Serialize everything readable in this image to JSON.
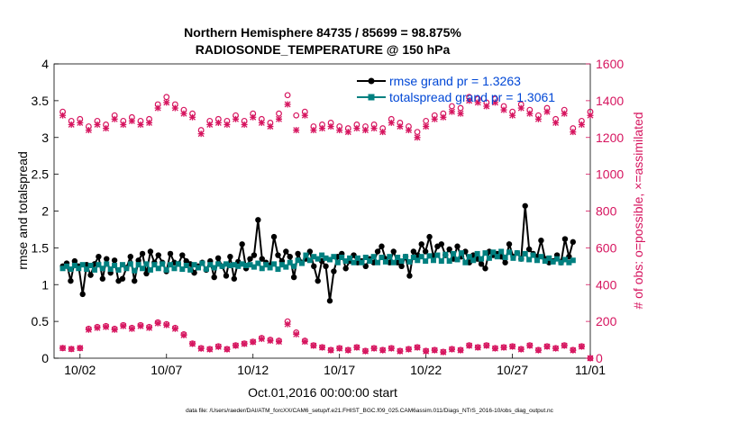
{
  "chart_data": {
    "type": "line",
    "title_line1": "Northern Hemisphere 84735 / 85699 = 98.875%",
    "title_line2": "RADIOSONDE_TEMPERATURE @ 150 hPa",
    "xlabel": "Oct.01,2016 00:00:00 start",
    "ylabel_left": "rmse and totalspread",
    "ylabel_right": "# of obs: o=possible, ×=assimilated",
    "footnote": "data file: /Users/raeder/DAI/ATM_forcXX/CAM6_setup/f.e21.FHIST_BGC.f09_025.CAM6assim.011/Diags_NTrS_2016-10/obs_diag_output.nc",
    "xlim": [
      0.5,
      31.5
    ],
    "ylim_left": [
      0,
      4
    ],
    "ylim_right": [
      0,
      1600
    ],
    "x_ticks": [
      {
        "x": 2,
        "label": "10/02"
      },
      {
        "x": 7,
        "label": "10/07"
      },
      {
        "x": 12,
        "label": "10/12"
      },
      {
        "x": 17,
        "label": "10/17"
      },
      {
        "x": 22,
        "label": "10/22"
      },
      {
        "x": 27,
        "label": "10/27"
      },
      {
        "x": 32,
        "label": "11/01"
      }
    ],
    "y_ticks_left": [
      "0",
      "0.5",
      "1",
      "1.5",
      "2",
      "2.5",
      "3",
      "3.5",
      "4"
    ],
    "y_ticks_right": [
      "0",
      "200",
      "400",
      "600",
      "800",
      "1000",
      "1200",
      "1400",
      "1600"
    ],
    "grid": false,
    "legend_position": "top-right",
    "colors": {
      "rmse": "#000000",
      "totalspread": "#008080",
      "obs": "#d6155f"
    },
    "series": [
      {
        "name": "rmse grand pr = 1.3263",
        "axis": "left",
        "values": [
          1.25,
          1.29,
          1.05,
          1.32,
          1.25,
          0.87,
          1.27,
          1.13,
          1.28,
          1.38,
          1.08,
          1.35,
          1.16,
          1.33,
          1.05,
          1.08,
          1.23,
          1.38,
          1.05,
          1.33,
          1.42,
          1.15,
          1.45,
          1.3,
          1.4,
          1.3,
          1.18,
          1.42,
          1.3,
          1.28,
          1.4,
          1.32,
          1.28,
          1.16,
          1.25,
          1.3,
          1.2,
          1.32,
          1.1,
          1.36,
          1.25,
          1.12,
          1.38,
          1.08,
          1.31,
          1.55,
          1.22,
          1.35,
          1.4,
          1.88,
          1.35,
          1.3,
          1.26,
          1.65,
          1.4,
          1.32,
          1.45,
          1.38,
          1.1,
          1.42,
          1.3,
          1.35,
          1.45,
          1.25,
          1.05,
          1.32,
          1.25,
          0.78,
          1.18,
          1.38,
          1.42,
          1.22,
          1.32,
          1.4,
          1.3,
          1.32,
          1.25,
          1.35,
          1.3,
          1.45,
          1.52,
          1.35,
          1.3,
          1.45,
          1.3,
          1.25,
          1.38,
          1.12,
          1.45,
          1.4,
          1.55,
          1.45,
          1.65,
          1.38,
          1.52,
          1.55,
          1.4,
          1.48,
          1.35,
          1.52,
          1.38,
          1.45,
          1.3,
          1.4,
          1.35,
          1.28,
          1.22,
          1.45,
          1.4,
          1.42,
          1.38,
          1.3,
          1.55,
          1.38,
          1.43,
          1.35,
          2.07,
          1.48,
          1.42,
          1.38,
          1.6,
          1.35,
          1.3,
          1.32,
          1.4,
          1.3,
          1.62,
          1.38,
          1.58
        ]
      },
      {
        "name": "totalspread grand pr = 1.3061",
        "axis": "left",
        "values": [
          1.22,
          1.25,
          1.21,
          1.26,
          1.22,
          1.27,
          1.21,
          1.26,
          1.2,
          1.27,
          1.22,
          1.28,
          1.21,
          1.26,
          1.2,
          1.27,
          1.22,
          1.28,
          1.19,
          1.27,
          1.22,
          1.28,
          1.2,
          1.27,
          1.22,
          1.28,
          1.2,
          1.27,
          1.22,
          1.28,
          1.21,
          1.26,
          1.2,
          1.27,
          1.23,
          1.29,
          1.21,
          1.27,
          1.23,
          1.28,
          1.25,
          1.28,
          1.26,
          1.27,
          1.25,
          1.28,
          1.26,
          1.27,
          1.24,
          1.29,
          1.22,
          1.27,
          1.23,
          1.28,
          1.21,
          1.27,
          1.24,
          1.3,
          1.25,
          1.33,
          1.29,
          1.4,
          1.33,
          1.38,
          1.35,
          1.4,
          1.36,
          1.34,
          1.38,
          1.3,
          1.37,
          1.32,
          1.36,
          1.3,
          1.36,
          1.3,
          1.37,
          1.32,
          1.38,
          1.3,
          1.37,
          1.31,
          1.38,
          1.3,
          1.37,
          1.32,
          1.38,
          1.31,
          1.37,
          1.33,
          1.38,
          1.32,
          1.39,
          1.33,
          1.4,
          1.32,
          1.41,
          1.32,
          1.42,
          1.34,
          1.43,
          1.3,
          1.38,
          1.33,
          1.42,
          1.35,
          1.43,
          1.36,
          1.44,
          1.38,
          1.45,
          1.37,
          1.44,
          1.36,
          1.43,
          1.35,
          1.42,
          1.34,
          1.4,
          1.33,
          1.38,
          1.32,
          1.36,
          1.31,
          1.35,
          1.3,
          1.34,
          1.3,
          1.33
        ]
      },
      {
        "name": "obs possible",
        "axis": "right",
        "marker": "circle",
        "x": [
          1,
          1.5,
          2,
          2.5,
          3,
          3.5,
          4,
          4.5,
          5,
          5.5,
          6,
          6.5,
          7,
          7.5,
          8,
          8.5,
          9,
          9.5,
          10,
          10.5,
          11,
          11.5,
          12,
          12.5,
          13,
          13.5,
          14,
          14.5,
          15,
          15.5,
          16,
          16.5,
          17,
          17.5,
          18,
          18.5,
          19,
          19.5,
          20,
          20.5,
          21,
          21.5,
          22,
          22.5,
          23,
          23.5,
          24,
          24.5,
          25,
          25.5,
          26,
          26.5,
          27,
          27.5,
          28,
          28.5,
          29,
          29.5,
          30,
          30.5,
          31,
          31.5
        ],
        "values": [
          1340,
          1290,
          1300,
          1260,
          1290,
          1270,
          1320,
          1290,
          1310,
          1290,
          1300,
          1380,
          1420,
          1380,
          1350,
          1330,
          1240,
          1290,
          1300,
          1290,
          1320,
          1290,
          1330,
          1300,
          1280,
          1330,
          1430,
          1320,
          1340,
          1260,
          1270,
          1280,
          1260,
          1250,
          1270,
          1260,
          1270,
          1250,
          1300,
          1280,
          1260,
          1230,
          1290,
          1320,
          1330,
          1370,
          1360,
          1420,
          1410,
          1390,
          1410,
          1370,
          1340,
          1380,
          1350,
          1320,
          1360,
          1300,
          1350,
          1250,
          1290,
          1340
        ]
      },
      {
        "name": "obs assimilated",
        "axis": "right",
        "marker": "star",
        "x": [
          1,
          1.5,
          2,
          2.5,
          3,
          3.5,
          4,
          4.5,
          5,
          5.5,
          6,
          6.5,
          7,
          7.5,
          8,
          8.5,
          9,
          9.5,
          10,
          10.5,
          11,
          11.5,
          12,
          12.5,
          13,
          13.5,
          14,
          14.5,
          15,
          15.5,
          16,
          16.5,
          17,
          17.5,
          18,
          18.5,
          19,
          19.5,
          20,
          20.5,
          21,
          21.5,
          22,
          22.5,
          23,
          23.5,
          24,
          24.5,
          25,
          25.5,
          26,
          26.5,
          27,
          27.5,
          28,
          28.5,
          29,
          29.5,
          30,
          30.5,
          31,
          31.5
        ],
        "values": [
          1320,
          1270,
          1280,
          1240,
          1270,
          1250,
          1300,
          1270,
          1290,
          1270,
          1280,
          1360,
          1390,
          1360,
          1330,
          1310,
          1220,
          1270,
          1280,
          1270,
          1300,
          1270,
          1310,
          1280,
          1260,
          1300,
          1380,
          1240,
          1320,
          1240,
          1250,
          1260,
          1240,
          1230,
          1250,
          1240,
          1250,
          1230,
          1280,
          1260,
          1240,
          1200,
          1260,
          1300,
          1310,
          1340,
          1330,
          1400,
          1390,
          1370,
          1390,
          1350,
          1320,
          1360,
          1330,
          1300,
          1340,
          1280,
          1330,
          1230,
          1270,
          1320
        ]
      },
      {
        "name": "obs possible lower",
        "axis": "right",
        "marker": "circle",
        "x": [
          1,
          1.5,
          2,
          2.5,
          3,
          3.5,
          4,
          4.5,
          5,
          5.5,
          6,
          6.5,
          7,
          7.5,
          8,
          8.5,
          9,
          9.5,
          10,
          10.5,
          11,
          11.5,
          12,
          12.5,
          13,
          13.5,
          14,
          14.5,
          15,
          15.5,
          16,
          16.5,
          17,
          17.5,
          18,
          18.5,
          19,
          19.5,
          20,
          20.5,
          21,
          21.5,
          22,
          22.5,
          23,
          23.5,
          24,
          24.5,
          25,
          25.5,
          26,
          26.5,
          27,
          27.5,
          28,
          28.5,
          29,
          29.5,
          30,
          30.5,
          31,
          31.5
        ],
        "values": [
          55,
          50,
          55,
          160,
          170,
          175,
          160,
          180,
          165,
          180,
          170,
          195,
          185,
          165,
          130,
          80,
          55,
          50,
          65,
          50,
          70,
          80,
          90,
          110,
          100,
          95,
          200,
          140,
          95,
          70,
          60,
          45,
          55,
          45,
          60,
          40,
          55,
          45,
          55,
          40,
          50,
          60,
          40,
          45,
          35,
          50,
          45,
          70,
          60,
          70,
          55,
          60,
          65,
          50,
          70,
          45,
          65,
          55,
          70,
          45,
          65,
          0
        ]
      },
      {
        "name": "obs assimilated lower",
        "axis": "right",
        "marker": "star",
        "x": [
          1,
          1.5,
          2,
          2.5,
          3,
          3.5,
          4,
          4.5,
          5,
          5.5,
          6,
          6.5,
          7,
          7.5,
          8,
          8.5,
          9,
          9.5,
          10,
          10.5,
          11,
          11.5,
          12,
          12.5,
          13,
          13.5,
          14,
          14.5,
          15,
          15.5,
          16,
          16.5,
          17,
          17.5,
          18,
          18.5,
          19,
          19.5,
          20,
          20.5,
          21,
          21.5,
          22,
          22.5,
          23,
          23.5,
          24,
          24.5,
          25,
          25.5,
          26,
          26.5,
          27,
          27.5,
          28,
          28.5,
          29,
          29.5,
          30,
          30.5,
          31,
          31.5
        ],
        "values": [
          55,
          50,
          55,
          155,
          165,
          170,
          155,
          175,
          160,
          175,
          165,
          190,
          180,
          160,
          125,
          78,
          52,
          48,
          62,
          48,
          68,
          78,
          88,
          105,
          95,
          90,
          185,
          130,
          90,
          68,
          58,
          43,
          53,
          43,
          58,
          38,
          53,
          43,
          53,
          38,
          48,
          58,
          38,
          43,
          33,
          48,
          43,
          68,
          58,
          68,
          53,
          58,
          63,
          48,
          68,
          43,
          63,
          53,
          68,
          43,
          63,
          0
        ]
      }
    ]
  }
}
